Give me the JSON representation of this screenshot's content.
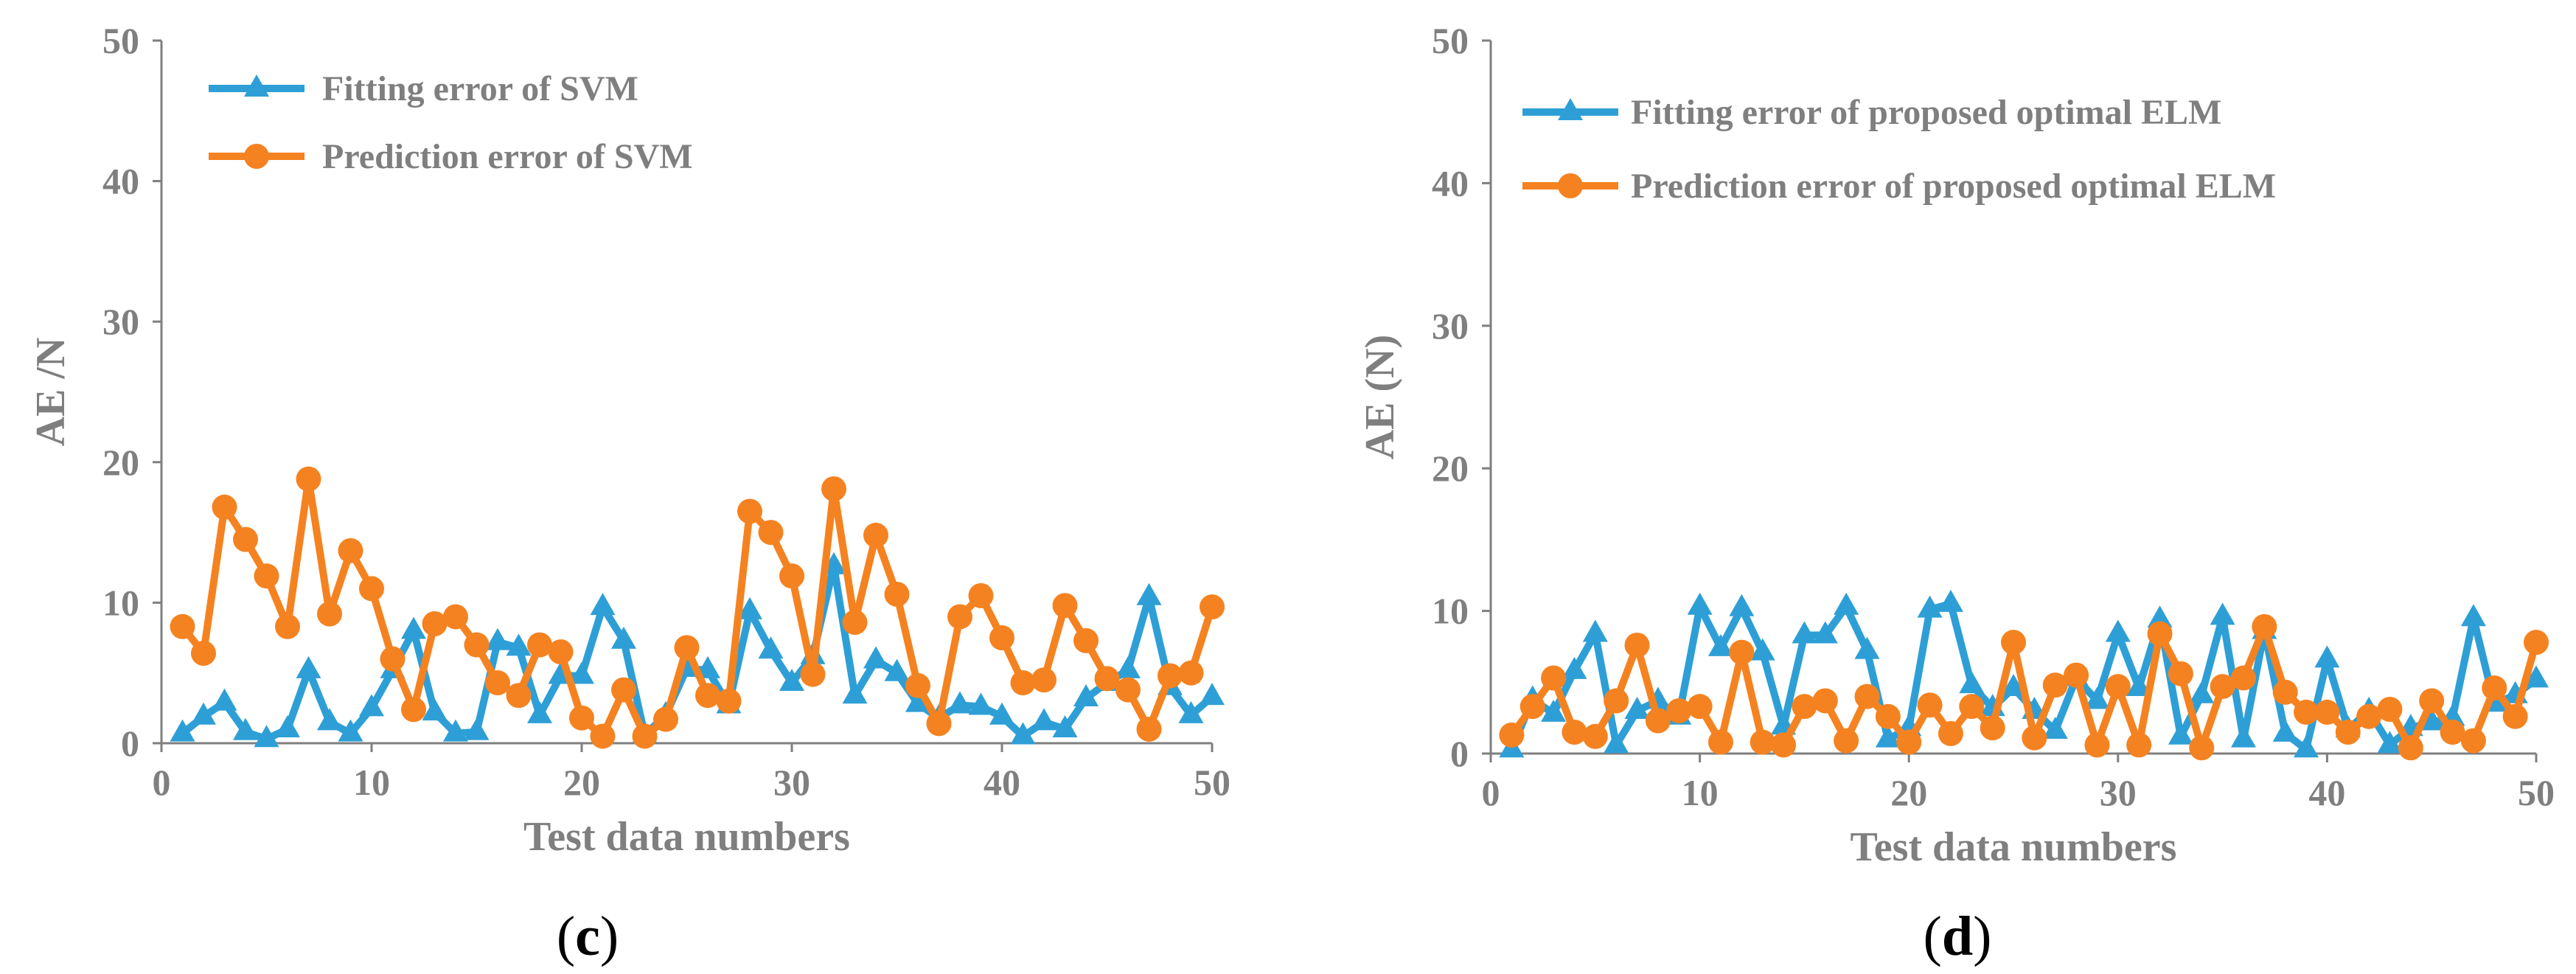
{
  "chart_data": [
    {
      "type": "line",
      "panel": "c",
      "xlabel": "Test data numbers",
      "ylabel": "AE /N",
      "xlim": [
        0,
        50
      ],
      "ylim": [
        0,
        50
      ],
      "xticks": [
        0,
        10,
        20,
        30,
        40,
        50
      ],
      "yticks": [
        0,
        10,
        20,
        30,
        40,
        50
      ],
      "legend_position": "top-left",
      "series": [
        {
          "name": "Fitting error of SVM",
          "color": "#2e9fd6",
          "marker": "triangle",
          "x": [
            1,
            2,
            3,
            4,
            5,
            6,
            7,
            8,
            9,
            10,
            11,
            12,
            13,
            14,
            15,
            16,
            17,
            18,
            19,
            20,
            21,
            22,
            23,
            24,
            25,
            26,
            27,
            28,
            29,
            30,
            31,
            32,
            33,
            34,
            35,
            36,
            37,
            38,
            39,
            40,
            41,
            42,
            43,
            44,
            45,
            46,
            47,
            48,
            49,
            50
          ],
          "values": [
            0.7,
            1.9,
            2.9,
            0.8,
            0.3,
            1.0,
            5.2,
            1.5,
            0.7,
            2.5,
            5.2,
            8.0,
            2.2,
            0.7,
            0.8,
            7.2,
            6.8,
            2.0,
            4.8,
            4.8,
            9.7,
            7.3,
            0.6,
            2.0,
            5.3,
            5.2,
            2.7,
            9.4,
            6.6,
            4.3,
            6.2,
            12.6,
            3.4,
            5.9,
            5.0,
            2.8,
            1.8,
            2.7,
            2.6,
            1.9,
            0.5,
            1.5,
            1.0,
            3.2,
            4.3,
            5.2,
            10.4,
            4.0,
            2.0,
            3.3
          ]
        },
        {
          "name": "Prediction error of SVM",
          "color": "#f58220",
          "marker": "circle",
          "x": [
            1,
            2,
            3,
            4,
            5,
            6,
            7,
            8,
            9,
            10,
            11,
            12,
            13,
            14,
            15,
            16,
            17,
            18,
            19,
            20,
            21,
            22,
            23,
            24,
            25,
            26,
            27,
            28,
            29,
            30,
            31,
            32,
            33,
            34,
            35,
            36,
            37,
            38,
            39,
            40,
            41,
            42,
            43,
            44,
            45,
            46,
            47,
            48,
            49,
            50
          ],
          "values": [
            8.3,
            6.4,
            16.8,
            14.5,
            11.9,
            8.3,
            18.8,
            9.2,
            13.7,
            11.0,
            6.0,
            2.4,
            8.5,
            9.0,
            7.0,
            4.3,
            3.4,
            7.0,
            6.5,
            1.8,
            0.5,
            3.8,
            0.5,
            1.7,
            6.8,
            3.4,
            3.0,
            16.5,
            15.0,
            11.9,
            4.9,
            18.1,
            8.6,
            14.8,
            10.6,
            4.1,
            1.4,
            9.0,
            10.5,
            7.5,
            4.3,
            4.5,
            9.8,
            7.3,
            4.6,
            3.8,
            1.0,
            4.8,
            5.0,
            9.7
          ]
        }
      ]
    },
    {
      "type": "line",
      "panel": "d",
      "xlabel": "Test data numbers",
      "ylabel": "AE (N)",
      "xlim": [
        0,
        50
      ],
      "ylim": [
        0,
        50
      ],
      "xticks": [
        0,
        10,
        20,
        30,
        40,
        50
      ],
      "yticks": [
        0,
        10,
        20,
        30,
        40,
        50
      ],
      "legend_position": "top-left",
      "series": [
        {
          "name": "Fitting error of proposed optimal ELM",
          "color": "#2e9fd6",
          "marker": "triangle",
          "x": [
            1,
            2,
            3,
            4,
            5,
            6,
            7,
            8,
            9,
            10,
            11,
            12,
            13,
            14,
            15,
            16,
            17,
            18,
            19,
            20,
            21,
            22,
            23,
            24,
            25,
            26,
            27,
            28,
            29,
            30,
            31,
            32,
            33,
            34,
            35,
            36,
            37,
            38,
            39,
            40,
            41,
            42,
            43,
            44,
            45,
            46,
            47,
            48,
            49,
            50
          ],
          "values": [
            0.3,
            3.8,
            2.8,
            5.8,
            8.4,
            0.6,
            3.0,
            3.7,
            2.6,
            10.3,
            7.4,
            10.2,
            7.1,
            1.9,
            8.3,
            8.3,
            10.3,
            7.2,
            1.0,
            1.8,
            10.1,
            10.5,
            4.8,
            3.2,
            4.6,
            3.0,
            1.6,
            5.3,
            3.7,
            8.4,
            4.6,
            9.4,
            1.2,
            4.1,
            9.6,
            1.0,
            8.6,
            1.4,
            0.3,
            6.6,
            1.7,
            3.0,
            0.6,
            1.8,
            2.2,
            2.5,
            9.5,
            3.5,
            4.1,
            5.2
          ]
        },
        {
          "name": "Prediction error of proposed optimal ELM",
          "color": "#f58220",
          "marker": "circle",
          "x": [
            1,
            2,
            3,
            4,
            5,
            6,
            7,
            8,
            9,
            10,
            11,
            12,
            13,
            14,
            15,
            16,
            17,
            18,
            19,
            20,
            21,
            22,
            23,
            24,
            25,
            26,
            27,
            28,
            29,
            30,
            31,
            32,
            33,
            34,
            35,
            36,
            37,
            38,
            39,
            40,
            41,
            42,
            43,
            44,
            45,
            46,
            47,
            48,
            49,
            50
          ],
          "values": [
            1.3,
            3.3,
            5.3,
            1.5,
            1.2,
            3.7,
            7.6,
            2.3,
            3.0,
            3.3,
            0.8,
            7.1,
            0.8,
            0.6,
            3.3,
            3.7,
            0.9,
            4.0,
            2.6,
            0.8,
            3.4,
            1.4,
            3.3,
            1.8,
            7.8,
            1.1,
            4.8,
            5.5,
            0.6,
            4.7,
            0.6,
            8.4,
            5.6,
            0.4,
            4.7,
            5.3,
            8.9,
            4.3,
            2.9,
            2.9,
            1.5,
            2.6,
            3.1,
            0.4,
            3.7,
            1.5,
            0.9,
            4.6,
            2.6,
            7.8
          ]
        }
      ]
    }
  ],
  "captions": {
    "c": {
      "open": "(",
      "letter": "c",
      "close": ")"
    },
    "d": {
      "open": "(",
      "letter": "d",
      "close": ")"
    }
  }
}
